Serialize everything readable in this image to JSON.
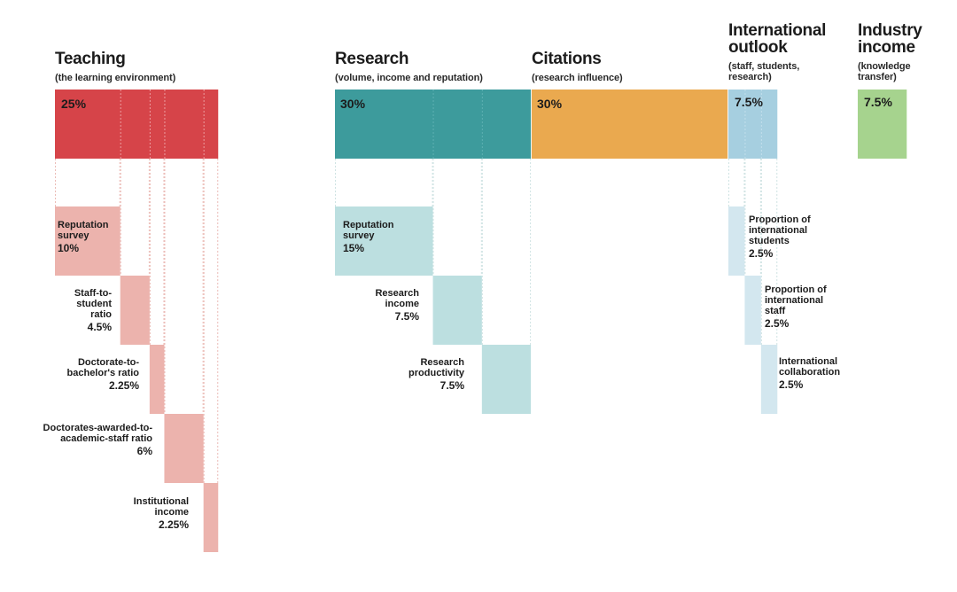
{
  "colors": {
    "teaching": "#d64449",
    "teaching_sub": "#ecb3ad",
    "research": "#3d9b9c",
    "research_sub": "#bcdfe0",
    "citations": "#eaa94f",
    "international": "#a6cfe0",
    "international_sub": "#d3e7ef",
    "industry": "#a6d38e",
    "grid": "#ebbcb7",
    "grid_teal": "#cfe3e3"
  },
  "chart_data": {
    "type": "bar",
    "categories": [
      "Teaching",
      "Research",
      "Citations",
      "International outlook",
      "Industry income"
    ],
    "values": [
      25,
      30,
      30,
      7.5,
      7.5
    ],
    "groups": [
      {
        "key": "teaching",
        "title": "Teaching",
        "subtitle": "(the learning environment)",
        "weight_label": "25%",
        "weight": 25,
        "components": [
          {
            "name": "Reputation survey",
            "value_label": "10%",
            "value": 10
          },
          {
            "name": "Staff-to-student ratio",
            "value_label": "4.5%",
            "value": 4.5
          },
          {
            "name": "Doctorate-to-bachelor's ratio",
            "value_label": "2.25%",
            "value": 2.25
          },
          {
            "name": "Doctorates-awarded-to-academic-staff ratio",
            "value_label": "6%",
            "value": 6
          },
          {
            "name": "Institutional income",
            "value_label": "2.25%",
            "value": 2.25
          }
        ]
      },
      {
        "key": "research",
        "title": "Research",
        "subtitle": "(volume, income and reputation)",
        "weight_label": "30%",
        "weight": 30,
        "components": [
          {
            "name": "Reputation survey",
            "value_label": "15%",
            "value": 15
          },
          {
            "name": "Research income",
            "value_label": "7.5%",
            "value": 7.5
          },
          {
            "name": "Research productivity",
            "value_label": "7.5%",
            "value": 7.5
          }
        ]
      },
      {
        "key": "citations",
        "title": "Citations",
        "subtitle": "(research influence)",
        "weight_label": "30%",
        "weight": 30,
        "components": []
      },
      {
        "key": "international",
        "title": "International outlook",
        "subtitle": "(staff, students, research)",
        "weight_label": "7.5%",
        "weight": 7.5,
        "components": [
          {
            "name": "Proportion of international students",
            "value_label": "2.5%",
            "value": 2.5
          },
          {
            "name": "Proportion of international staff",
            "value_label": "2.5%",
            "value": 2.5
          },
          {
            "name": "International collaboration",
            "value_label": "2.5%",
            "value": 2.5
          }
        ]
      },
      {
        "key": "industry",
        "title": "Industry income",
        "subtitle": "(knowledge transfer)",
        "weight_label": "7.5%",
        "weight": 7.5,
        "components": []
      }
    ]
  }
}
